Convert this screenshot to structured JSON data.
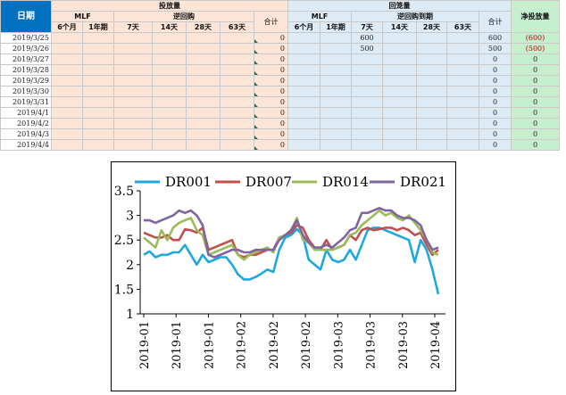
{
  "table": {
    "header": {
      "date_label": "日期",
      "injection_group": "投放量",
      "withdrawal_group": "回笼量",
      "net_label": "净投放量",
      "mlf_label": "MLF",
      "reverse_repo_label": "逆回购",
      "reverse_repo_maturity_label": "逆回购到期",
      "total_label": "合计",
      "terms_mlf": [
        "6个月",
        "1年期"
      ],
      "terms_repo": [
        "7天",
        "14天",
        "28天",
        "63天"
      ]
    },
    "rows": [
      {
        "date": "2019/3/25",
        "inj_total": "0",
        "ret_7d": "600",
        "ret_total": "600",
        "net": "(600)",
        "neg": true
      },
      {
        "date": "2019/3/26",
        "inj_total": "0",
        "ret_7d": "500",
        "ret_total": "500",
        "net": "(500)",
        "neg": true
      },
      {
        "date": "2019/3/27",
        "inj_total": "0",
        "ret_7d": "",
        "ret_total": "0",
        "net": "0",
        "neg": false
      },
      {
        "date": "2019/3/28",
        "inj_total": "0",
        "ret_7d": "",
        "ret_total": "0",
        "net": "0",
        "neg": false
      },
      {
        "date": "2019/3/29",
        "inj_total": "0",
        "ret_7d": "",
        "ret_total": "0",
        "net": "0",
        "neg": false
      },
      {
        "date": "2019/3/30",
        "inj_total": "0",
        "ret_7d": "",
        "ret_total": "0",
        "net": "0",
        "neg": false
      },
      {
        "date": "2019/3/31",
        "inj_total": "0",
        "ret_7d": "",
        "ret_total": "0",
        "net": "0",
        "neg": false
      },
      {
        "date": "2019/4/1",
        "inj_total": "0",
        "ret_7d": "",
        "ret_total": "0",
        "net": "0",
        "neg": false
      },
      {
        "date": "2019/4/2",
        "inj_total": "0",
        "ret_7d": "",
        "ret_total": "0",
        "net": "0",
        "neg": false
      },
      {
        "date": "2019/4/3",
        "inj_total": "0",
        "ret_7d": "",
        "ret_total": "0",
        "net": "0",
        "neg": false
      },
      {
        "date": "2019/4/4",
        "inj_total": "0",
        "ret_7d": "",
        "ret_total": "0",
        "net": "0",
        "neg": false
      }
    ],
    "colors": {
      "injection_bg": "#fce4d6",
      "withdrawal_bg": "#ddebf7",
      "net_bg": "#c6efce",
      "date_header_bg": "#0070c0",
      "negative": "#c00000"
    }
  },
  "chart_data": {
    "type": "line",
    "title": "",
    "xlabel": "",
    "ylabel": "",
    "ylim": [
      1,
      3.5
    ],
    "yticks": [
      "1",
      "1.5",
      "2",
      "2.5",
      "3",
      "3.5"
    ],
    "x_tick_labels": [
      "2019-01",
      "2019-01",
      "2019-01",
      "2019-02",
      "2019-02",
      "2019-02",
      "2019-03",
      "2019-03",
      "2019-03",
      "2019-04"
    ],
    "grid": false,
    "legend": "top",
    "series": [
      {
        "name": "DR001",
        "color": "#1fa8e0",
        "values": [
          2.2,
          2.27,
          2.15,
          2.2,
          2.2,
          2.25,
          2.25,
          2.4,
          2.2,
          2.0,
          2.2,
          2.05,
          2.1,
          2.15,
          2.15,
          2.0,
          1.8,
          1.7,
          1.7,
          1.75,
          1.82,
          1.9,
          1.85,
          2.3,
          2.55,
          2.6,
          2.72,
          2.6,
          2.1,
          2.0,
          1.9,
          2.3,
          2.1,
          2.05,
          2.1,
          2.3,
          2.1,
          2.4,
          2.7,
          2.75,
          2.75,
          2.7,
          2.65,
          2.6,
          2.55,
          2.5,
          2.05,
          2.5,
          2.3,
          1.9,
          1.4
        ]
      },
      {
        "name": "DR007",
        "color": "#c0504d",
        "values": [
          2.65,
          2.6,
          2.55,
          2.55,
          2.6,
          2.5,
          2.5,
          2.72,
          2.7,
          2.65,
          2.75,
          2.3,
          2.35,
          2.4,
          2.45,
          2.5,
          2.2,
          2.15,
          2.2,
          2.2,
          2.25,
          2.3,
          2.3,
          2.55,
          2.6,
          2.65,
          2.8,
          2.75,
          2.5,
          2.35,
          2.3,
          2.5,
          2.3,
          2.35,
          2.4,
          2.6,
          2.5,
          2.7,
          2.75,
          2.7,
          2.72,
          2.75,
          2.75,
          2.7,
          2.75,
          2.7,
          2.6,
          2.65,
          2.4,
          2.2,
          2.3
        ]
      },
      {
        "name": "DR014",
        "color": "#9bbb59",
        "values": [
          2.55,
          2.45,
          2.35,
          2.7,
          2.5,
          2.75,
          2.85,
          2.9,
          2.95,
          2.7,
          2.6,
          2.2,
          2.25,
          2.3,
          2.35,
          2.4,
          2.2,
          2.1,
          2.2,
          2.25,
          2.3,
          2.35,
          2.25,
          2.55,
          2.6,
          2.7,
          2.95,
          2.5,
          2.45,
          2.3,
          2.3,
          2.3,
          2.3,
          2.35,
          2.4,
          2.6,
          2.65,
          2.8,
          2.9,
          3.0,
          3.1,
          3.0,
          3.05,
          2.95,
          2.9,
          3.0,
          2.85,
          2.7,
          2.5,
          2.25,
          2.2
        ]
      },
      {
        "name": "DR021",
        "color": "#8064a2",
        "values": [
          2.9,
          2.9,
          2.85,
          2.9,
          2.95,
          3.0,
          3.1,
          3.05,
          3.1,
          3.0,
          2.8,
          2.2,
          2.15,
          2.2,
          2.25,
          2.3,
          2.3,
          2.25,
          2.25,
          2.3,
          2.3,
          2.3,
          2.3,
          2.5,
          2.6,
          2.7,
          2.9,
          2.6,
          2.45,
          2.35,
          2.35,
          2.4,
          2.35,
          2.45,
          2.55,
          2.7,
          2.75,
          3.05,
          3.05,
          3.1,
          3.15,
          3.1,
          3.1,
          3.0,
          2.95,
          2.95,
          2.9,
          2.8,
          2.5,
          2.3,
          2.35
        ]
      }
    ]
  }
}
